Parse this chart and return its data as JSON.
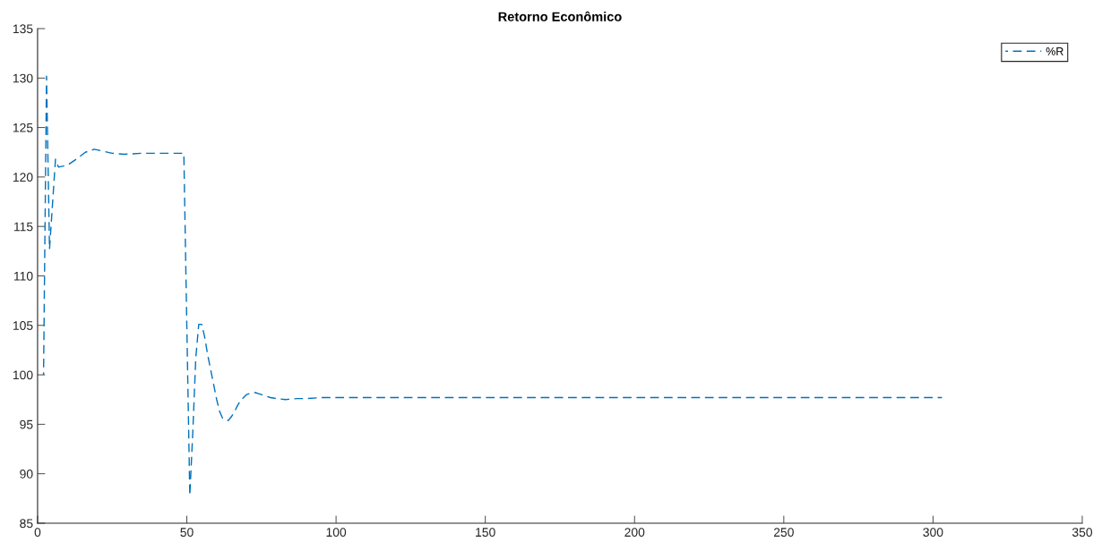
{
  "chart_data": {
    "type": "line",
    "title": "Retorno Econômico",
    "xlim": [
      0,
      350
    ],
    "xticks": [
      0,
      50,
      100,
      150,
      200,
      250,
      300,
      350
    ],
    "ylim": [
      85,
      135
    ],
    "yticks": [
      85,
      90,
      95,
      100,
      105,
      110,
      115,
      120,
      125,
      130,
      135
    ],
    "grid": false,
    "legend": "top right",
    "line_style": "dashed",
    "marker": "none",
    "series": [
      {
        "name": "%R",
        "color": "#0072bd",
        "x": [
          2,
          3,
          4,
          6,
          7,
          10,
          13,
          16,
          19,
          22,
          25,
          29,
          35,
          40,
          45,
          49,
          50,
          51,
          52,
          53,
          54,
          55,
          56,
          57,
          58,
          59,
          60,
          61,
          62,
          63,
          64,
          65,
          66,
          67,
          68,
          69,
          70,
          71,
          72,
          73,
          74,
          75,
          76,
          77,
          78,
          80,
          83,
          87,
          90,
          95,
          100,
          150,
          200,
          250,
          303
        ],
        "values": [
          100,
          130.2,
          112.7,
          121.8,
          121.0,
          121.2,
          121.8,
          122.5,
          122.8,
          122.6,
          122.4,
          122.3,
          122.4,
          122.4,
          122.4,
          122.4,
          105.0,
          87.8,
          94.2,
          101.7,
          105.1,
          105.1,
          103.8,
          102.0,
          100.5,
          99.0,
          97.5,
          96.3,
          95.6,
          95.4,
          95.4,
          95.8,
          96.3,
          96.9,
          97.4,
          97.7,
          98.0,
          98.1,
          98.2,
          98.2,
          98.1,
          98.0,
          97.9,
          97.8,
          97.7,
          97.6,
          97.5,
          97.6,
          97.6,
          97.7,
          97.7,
          97.7,
          97.7,
          97.7,
          97.7
        ]
      }
    ]
  }
}
